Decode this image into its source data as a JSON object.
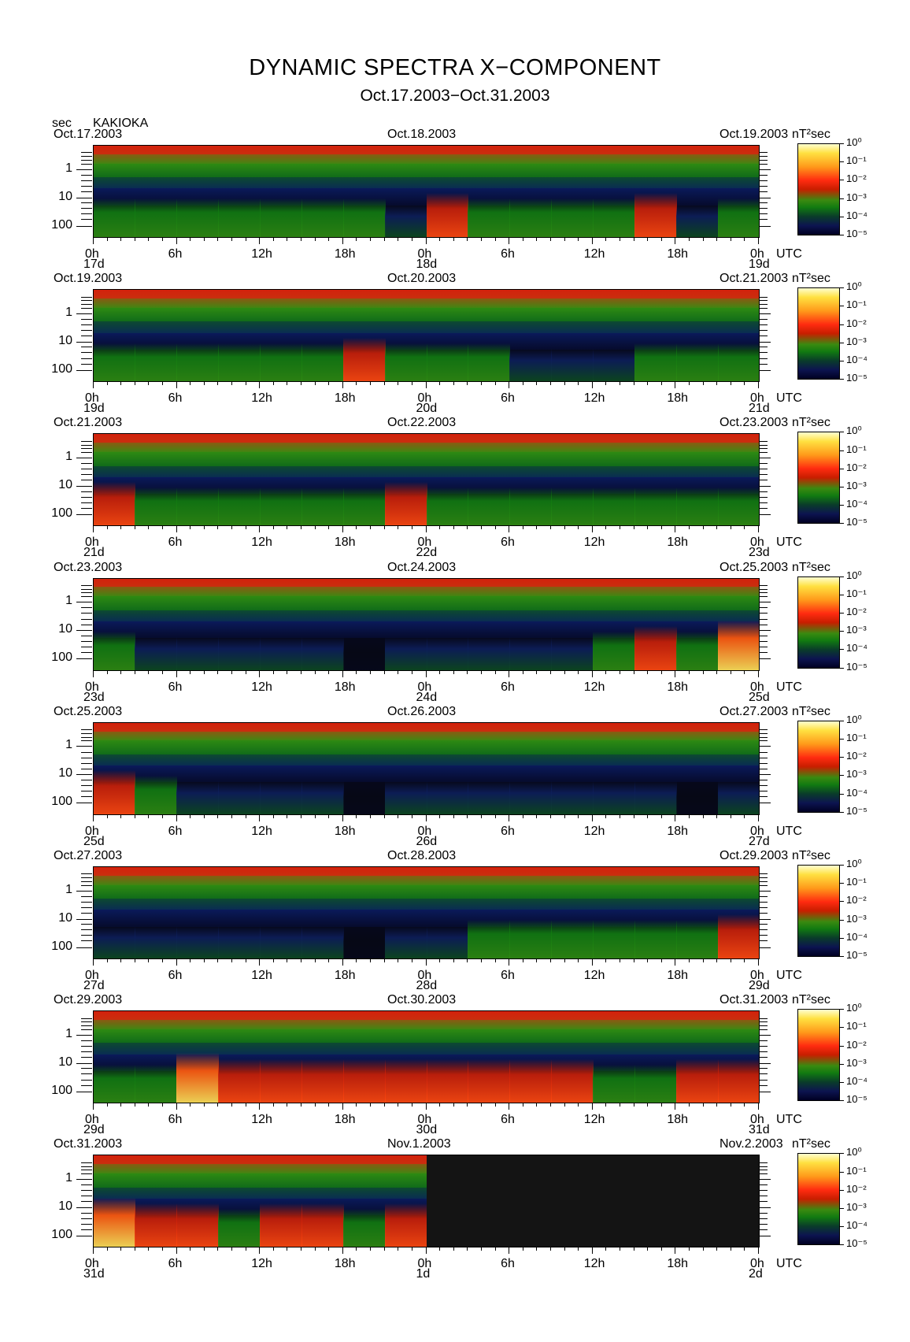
{
  "header": {
    "title": "DYNAMIC SPECTRA X−COMPONENT",
    "subtitle": "Oct.17.2003−Oct.31.2003",
    "y_unit": "sec",
    "station": "KAKIOKA"
  },
  "colorbar": {
    "label": "nT²sec",
    "ticks": [
      "10⁰",
      "10⁻¹",
      "10⁻²",
      "10⁻³",
      "10⁻⁴",
      "10⁻⁵"
    ],
    "colors": [
      "#ffffd0",
      "#ffe040",
      "#ff9a1a",
      "#ff2b10",
      "#c81e00",
      "#3a8a10",
      "#117a11",
      "#0a3c2a",
      "#0c1450",
      "#000022"
    ]
  },
  "chart_data": {
    "type": "heatmap",
    "y_axis": {
      "label": "sec",
      "scale": "log",
      "ticks": [
        "1",
        "10",
        "100"
      ]
    },
    "x_axis": {
      "ticks": [
        "0h",
        "6h",
        "12h",
        "18h",
        "0h",
        "6h",
        "12h",
        "18h",
        "0h"
      ],
      "unit": "UTC"
    },
    "panels": [
      {
        "date_left": "Oct.17.2003",
        "date_mid": "Oct.18.2003",
        "date_right": "Oct.19.2003",
        "days": [
          "17d",
          "18d",
          "19d"
        ],
        "activity": [
          2,
          2,
          2,
          2,
          2,
          2,
          2,
          1,
          3,
          2,
          2,
          2,
          2,
          3,
          1,
          2
        ],
        "missing_from": null
      },
      {
        "date_left": "Oct.19.2003",
        "date_mid": "Oct.20.2003",
        "date_right": "Oct.21.2003",
        "days": [
          "19d",
          "20d",
          "21d"
        ],
        "activity": [
          2,
          2,
          2,
          2,
          2,
          2,
          3,
          2,
          2,
          2,
          1,
          1,
          1,
          2,
          2,
          2
        ],
        "missing_from": null
      },
      {
        "date_left": "Oct.21.2003",
        "date_mid": "Oct.22.2003",
        "date_right": "Oct.23.2003",
        "days": [
          "21d",
          "22d",
          "23d"
        ],
        "activity": [
          3,
          2,
          2,
          2,
          2,
          2,
          2,
          3,
          2,
          2,
          2,
          2,
          2,
          2,
          2,
          2
        ],
        "missing_from": null
      },
      {
        "date_left": "Oct.23.2003",
        "date_mid": "Oct.24.2003",
        "date_right": "Oct.25.2003",
        "days": [
          "23d",
          "24d",
          "25d"
        ],
        "activity": [
          2,
          1,
          1,
          1,
          1,
          1,
          0,
          1,
          1,
          1,
          1,
          1,
          2,
          3,
          2,
          4
        ],
        "missing_from": null
      },
      {
        "date_left": "Oct.25.2003",
        "date_mid": "Oct.26.2003",
        "date_right": "Oct.27.2003",
        "days": [
          "25d",
          "26d",
          "27d"
        ],
        "activity": [
          3,
          2,
          1,
          1,
          1,
          1,
          0,
          1,
          1,
          1,
          1,
          1,
          1,
          1,
          0,
          1
        ],
        "missing_from": null
      },
      {
        "date_left": "Oct.27.2003",
        "date_mid": "Oct.28.2003",
        "date_right": "Oct.29.2003",
        "days": [
          "27d",
          "28d",
          "29d"
        ],
        "activity": [
          1,
          1,
          1,
          1,
          1,
          1,
          0,
          1,
          1,
          2,
          2,
          2,
          2,
          2,
          2,
          3
        ],
        "missing_from": null
      },
      {
        "date_left": "Oct.29.2003",
        "date_mid": "Oct.30.2003",
        "date_right": "Oct.31.2003",
        "days": [
          "29d",
          "30d",
          "31d"
        ],
        "activity": [
          2,
          2,
          4,
          3,
          3,
          3,
          3,
          3,
          3,
          3,
          3,
          3,
          2,
          2,
          3,
          3
        ],
        "missing_from": null
      },
      {
        "date_left": "Oct.31.2003",
        "date_mid": "Nov.1.2003",
        "date_right": "Nov.2.2003",
        "days": [
          "31d",
          "1d",
          "2d"
        ],
        "activity": [
          4,
          3,
          3,
          2,
          3,
          3,
          2,
          3,
          0,
          0,
          0,
          0,
          0,
          0,
          0,
          0
        ],
        "missing_from": 0.5
      }
    ]
  }
}
